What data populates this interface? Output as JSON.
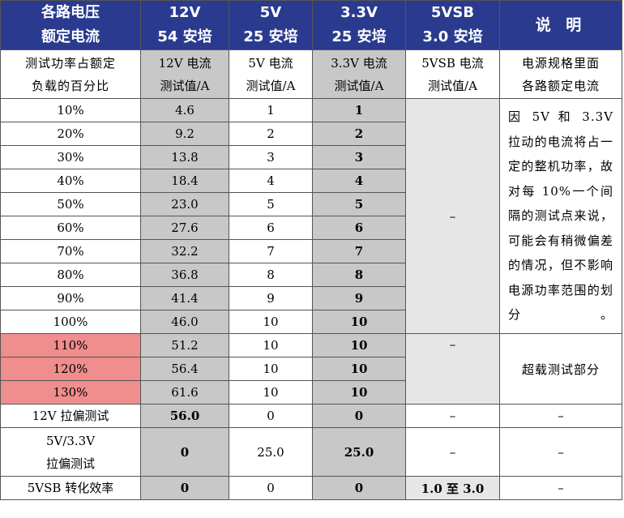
{
  "header": {
    "col0": [
      "各路电压",
      "额定电流"
    ],
    "col1": [
      "12V",
      "54 安培"
    ],
    "col2": [
      "5V",
      "25 安培"
    ],
    "col3": [
      "3.3V",
      "25 安培"
    ],
    "col4": [
      "5VSB",
      "3.0 安培"
    ],
    "col5": "说 明"
  },
  "subheader": {
    "col0": [
      "测试功率占额定",
      "负载的百分比"
    ],
    "col1": [
      "12V 电流",
      "测试值/A"
    ],
    "col2": [
      "5V 电流",
      "测试值/A"
    ],
    "col3": [
      "3.3V 电流",
      "测试值/A"
    ],
    "col4": [
      "5VSB 电流",
      "测试值/A"
    ],
    "col5": [
      "电源规格里面",
      "各路额定电流"
    ]
  },
  "rows": [
    {
      "pct": "10%",
      "v12": "4.6",
      "v5": "1",
      "v33": "1"
    },
    {
      "pct": "20%",
      "v12": "9.2",
      "v5": "2",
      "v33": "2"
    },
    {
      "pct": "30%",
      "v12": "13.8",
      "v5": "3",
      "v33": "3"
    },
    {
      "pct": "40%",
      "v12": "18.4",
      "v5": "4",
      "v33": "4"
    },
    {
      "pct": "50%",
      "v12": "23.0",
      "v5": "5",
      "v33": "5"
    },
    {
      "pct": "60%",
      "v12": "27.6",
      "v5": "6",
      "v33": "6"
    },
    {
      "pct": "70%",
      "v12": "32.2",
      "v5": "7",
      "v33": "7"
    },
    {
      "pct": "80%",
      "v12": "36.8",
      "v5": "8",
      "v33": "8"
    },
    {
      "pct": "90%",
      "v12": "41.4",
      "v5": "9",
      "v33": "9"
    },
    {
      "pct": "100%",
      "v12": "46.0",
      "v5": "10",
      "v33": "10"
    },
    {
      "pct": "110%",
      "v12": "51.2",
      "v5": "10",
      "v33": "10"
    },
    {
      "pct": "120%",
      "v12": "56.4",
      "v5": "10",
      "v33": "10"
    },
    {
      "pct": "130%",
      "v12": "61.6",
      "v5": "10",
      "v33": "10"
    }
  ],
  "vsb_normal": "–",
  "vsb_over": "–",
  "desc_normal": "因 5V 和 3.3V 拉动的电流将占一定的整机功率，故对每 10%一个间隔的测试点来说，可能会有稍微偏差的情况，但不影响电源功率范围的划分。",
  "desc_over": "超载测试部分",
  "special": [
    {
      "label": "12V 拉偏测试",
      "v12": "56.0",
      "v5": "0",
      "v33": "0",
      "vsb": "–",
      "desc": "–"
    },
    {
      "label": [
        "5V/3.3V",
        "拉偏测试"
      ],
      "v12": "0",
      "v5": "25.0",
      "v33": "25.0",
      "vsb": "–",
      "desc": "–"
    },
    {
      "label": "5VSB 转化效率",
      "v12": "0",
      "v5": "0",
      "v33": "0",
      "vsb": "1.0 至 3.0",
      "desc": "–"
    }
  ],
  "colors": {
    "header_bg": "#2a3b8f",
    "gray": "#c8c8c8",
    "light_gray": "#e6e6e6",
    "overload_pink": "#f08d8d"
  }
}
